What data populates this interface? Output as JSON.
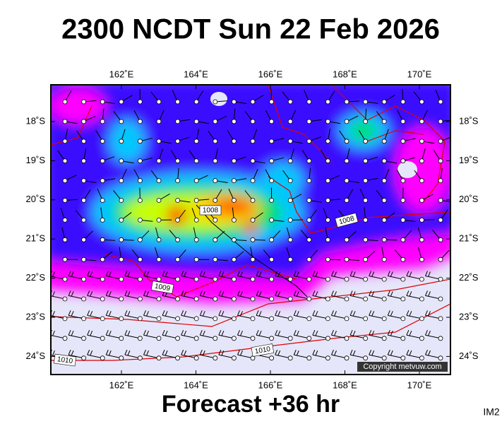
{
  "title": "2300 NCDT Sun 22 Feb 2026",
  "map": {
    "lon_labels": [
      "162˚E",
      "164˚E",
      "166˚E",
      "168˚E",
      "170˚E"
    ],
    "lat_labels": [
      "18˚S",
      "19˚S",
      "20˚S",
      "21˚S",
      "22˚S",
      "23˚S",
      "24˚S"
    ],
    "contour_labels": [
      "1008",
      "1008",
      "1009",
      "1010",
      "1010"
    ],
    "copyright": "Copyright metvuw.com"
  },
  "footer": "Forecast +36 hr",
  "corner_label": "IM2"
}
